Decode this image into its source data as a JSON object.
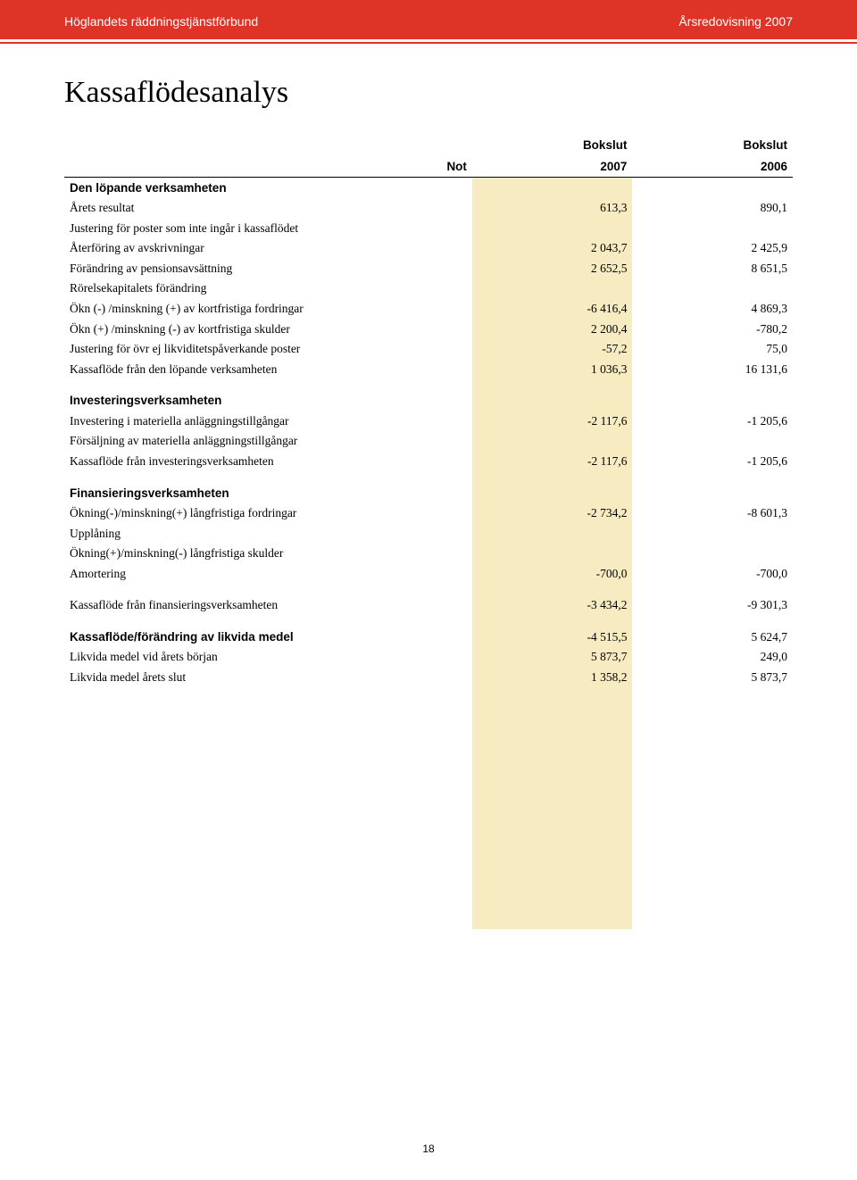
{
  "header": {
    "left": "Höglandets räddningstjänstförbund",
    "right": "Årsredovisning 2007"
  },
  "title": "Kassaflödesanalys",
  "columns": {
    "not": "Not",
    "y1_top": "Bokslut",
    "y1_bot": "2007",
    "y2_top": "Bokslut",
    "y2_bot": "2006"
  },
  "sections": [
    {
      "heading": "Den löpande verksamheten",
      "rows": [
        {
          "label": "Årets resultat",
          "v1": "613,3",
          "v2": "890,1"
        },
        {
          "label": "Justering för poster som inte ingår i kassaflödet",
          "v1": "",
          "v2": ""
        },
        {
          "label": "Återföring av avskrivningar",
          "v1": "2 043,7",
          "v2": "2 425,9"
        },
        {
          "label": "Förändring av pensionsavsättning",
          "v1": "2 652,5",
          "v2": "8 651,5"
        },
        {
          "label": "Rörelsekapitalets förändring",
          "v1": "",
          "v2": ""
        },
        {
          "label": "Ökn (-) /minskning (+) av kortfristiga fordringar",
          "v1": "-6 416,4",
          "v2": "4 869,3"
        },
        {
          "label": "Ökn (+) /minskning (-) av kortfristiga skulder",
          "v1": "2 200,4",
          "v2": "-780,2"
        },
        {
          "label": "Justering för övr ej likviditetspåverkande poster",
          "v1": "-57,2",
          "v2": "75,0"
        },
        {
          "label": "Kassaflöde från den löpande verksamheten",
          "v1": "1 036,3",
          "v2": "16 131,6"
        }
      ]
    },
    {
      "heading": "Investeringsverksamheten",
      "rows": [
        {
          "label": "Investering i materiella anläggningstillgångar",
          "v1": "-2 117,6",
          "v2": "-1 205,6"
        },
        {
          "label": "Försäljning av materiella anläggningstillgångar",
          "v1": "",
          "v2": ""
        },
        {
          "label": "Kassaflöde från investeringsverksamheten",
          "v1": "-2 117,6",
          "v2": "-1 205,6"
        }
      ]
    },
    {
      "heading": "Finansieringsverksamheten",
      "rows": [
        {
          "label": "Ökning(-)/minskning(+) långfristiga fordringar",
          "v1": "-2 734,2",
          "v2": "-8 601,3"
        },
        {
          "label": "Upplåning",
          "v1": "",
          "v2": ""
        },
        {
          "label": "Ökning(+)/minskning(-) långfristiga skulder",
          "v1": "",
          "v2": ""
        },
        {
          "label": "Amortering",
          "v1": "-700,0",
          "v2": "-700,0"
        }
      ]
    },
    {
      "heading": "",
      "rows": [
        {
          "label": "Kassaflöde från finansieringsverksamheten",
          "v1": "-3 434,2",
          "v2": "-9 301,3"
        }
      ]
    },
    {
      "heading": "",
      "rows": [
        {
          "label": "Kassaflöde/förändring av likvida medel",
          "bold": true,
          "v1": "-4 515,5",
          "v2": "5 624,7"
        },
        {
          "label": "Likvida medel vid årets början",
          "v1": "5 873,7",
          "v2": "249,0"
        },
        {
          "label": "Likvida medel årets slut",
          "v1": "1 358,2",
          "v2": "5 873,7"
        }
      ]
    }
  ],
  "highlight_extra_rows": 12,
  "page_number": "18",
  "colors": {
    "header_bg": "#dd3427",
    "highlight_bg": "#f7ecc1",
    "text": "#000000",
    "header_text": "#ffffff"
  }
}
